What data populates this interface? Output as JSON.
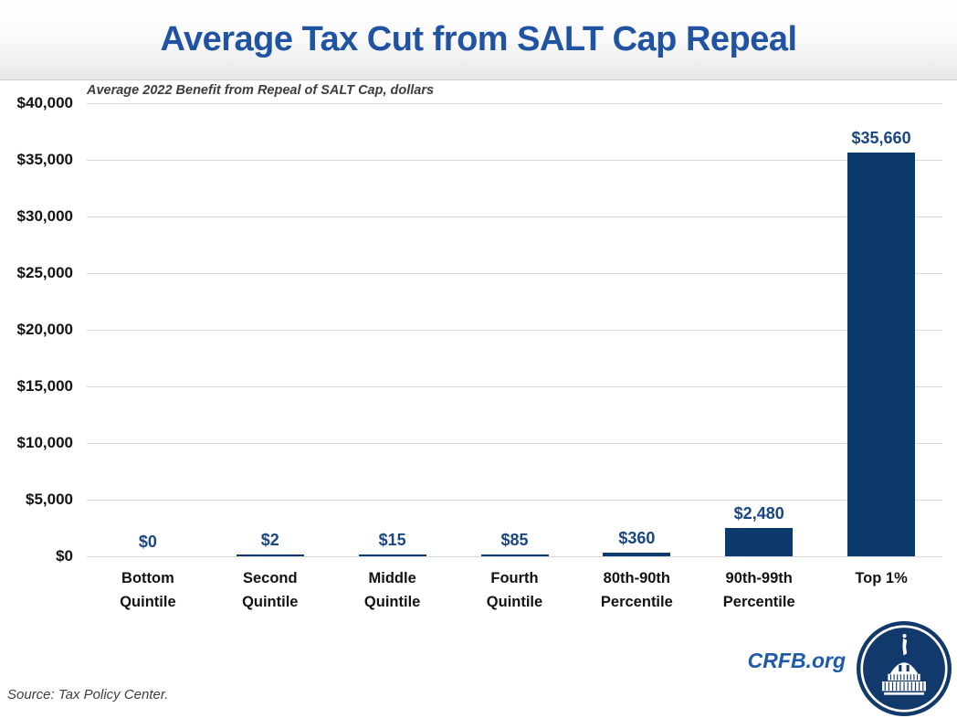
{
  "header": {
    "title": "Average Tax Cut from SALT Cap Repeal"
  },
  "chart_data": {
    "type": "bar",
    "title": "Average Tax Cut from SALT Cap Repeal",
    "subtitle": "Average 2022 Benefit from Repeal of SALT Cap, dollars",
    "categories": [
      "Bottom Quintile",
      "Second Quintile",
      "Middle Quintile",
      "Fourth Quintile",
      "80th-90th Percentile",
      "90th-99th Percentile",
      "Top 1%"
    ],
    "category_lines": [
      [
        "Bottom",
        "Quintile"
      ],
      [
        "Second",
        "Quintile"
      ],
      [
        "Middle",
        "Quintile"
      ],
      [
        "Fourth",
        "Quintile"
      ],
      [
        "80th-90th",
        "Percentile"
      ],
      [
        "90th-99th",
        "Percentile"
      ],
      [
        "Top 1%"
      ]
    ],
    "values": [
      0,
      2,
      15,
      85,
      360,
      2480,
      35660
    ],
    "data_labels": [
      "$0",
      "$2",
      "$15",
      "$85",
      "$360",
      "$2,480",
      "$35,660"
    ],
    "y_ticks": [
      "$40,000",
      "$35,000",
      "$30,000",
      "$25,000",
      "$20,000",
      "$15,000",
      "$10,000",
      "$5,000",
      "$0"
    ],
    "ylim": [
      0,
      40000
    ],
    "grid": true,
    "legend_position": "none",
    "colors": {
      "bar": "#0d3a6c",
      "data_label": "#1a4682",
      "grid": "#d9d9d9",
      "title": "#2153a3",
      "axis_text": "#121212"
    }
  },
  "footer": {
    "source": "Source: Tax Policy Center.",
    "brand": "CRFB.org"
  },
  "icons": {
    "logo": "capitol-dome-icon"
  }
}
